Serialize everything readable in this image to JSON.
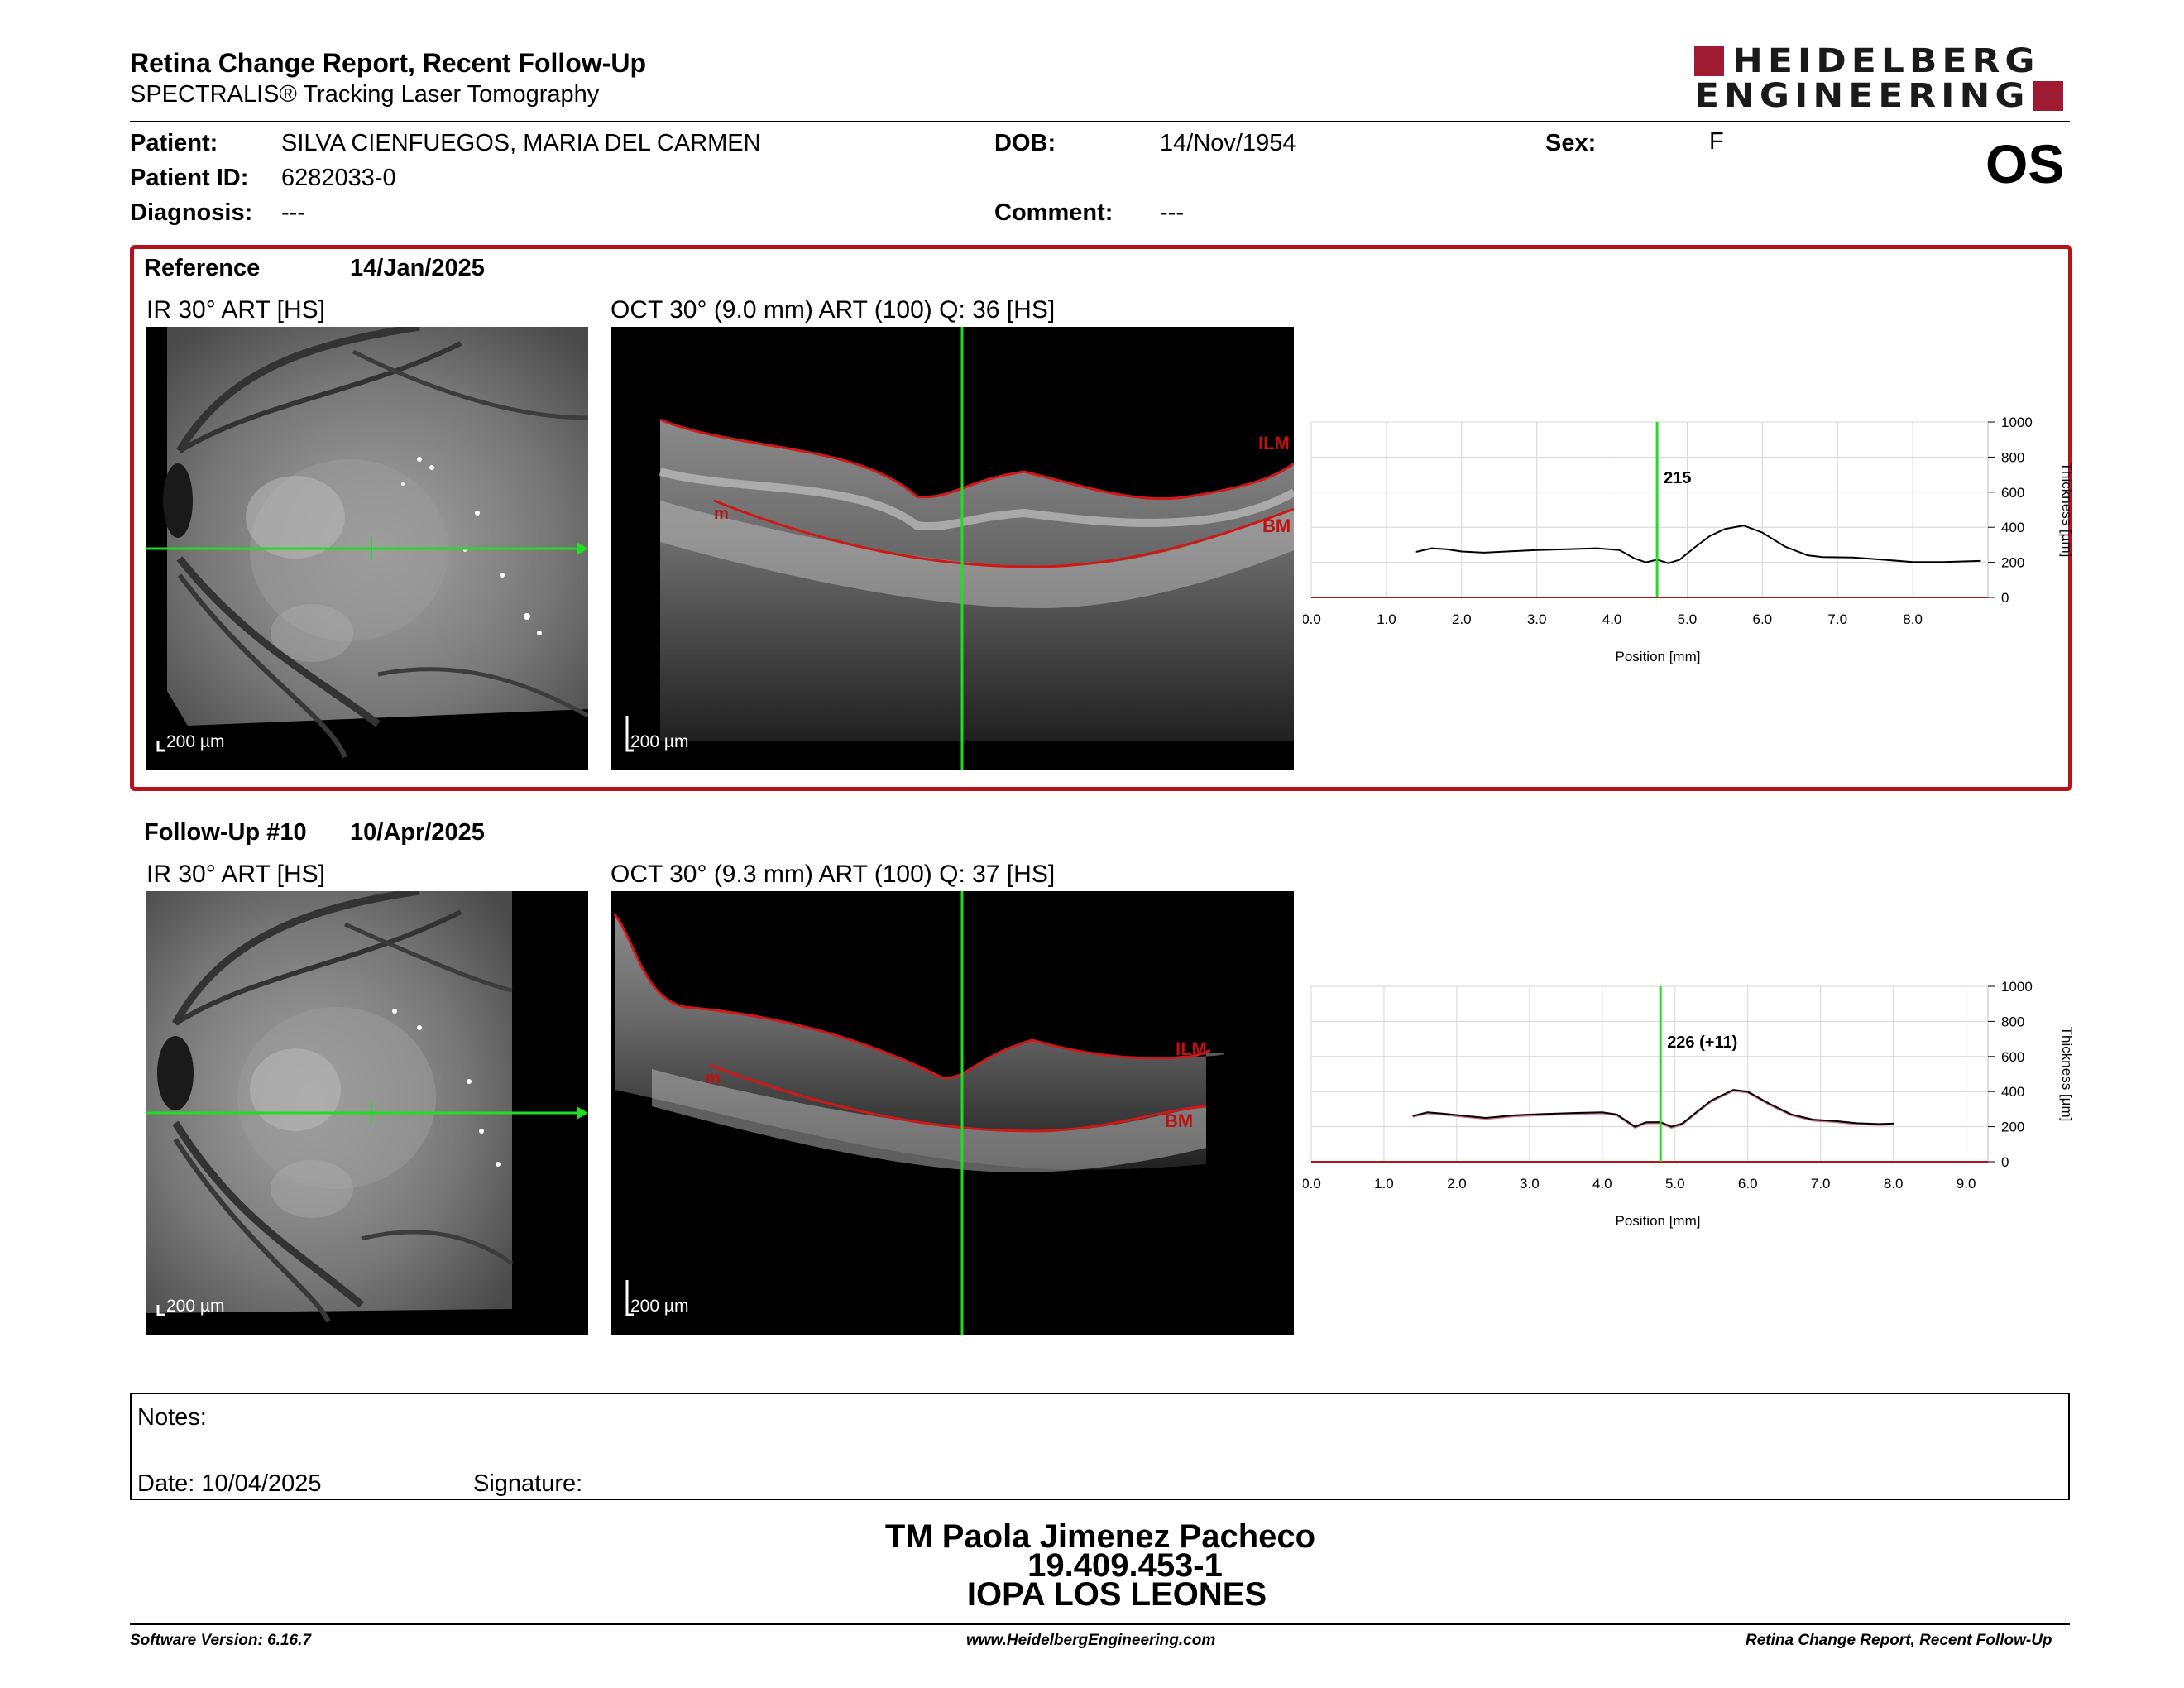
{
  "header": {
    "title": "Retina Change Report, Recent Follow-Up",
    "subtitle": "SPECTRALIS® Tracking Laser Tomography",
    "logo_line1": "HEIDELBERG",
    "logo_line2": "ENGINEERING"
  },
  "patient": {
    "patient_label": "Patient:",
    "patient_value": "SILVA CIENFUEGOS, MARIA DEL CARMEN",
    "id_label": "Patient ID:",
    "id_value": "6282033-0",
    "diagnosis_label": "Diagnosis:",
    "diagnosis_value": "---",
    "dob_label": "DOB:",
    "dob_value": "14/Nov/1954",
    "comment_label": "Comment:",
    "comment_value": "---",
    "sex_label": "Sex:",
    "sex_value": "F",
    "eye": "OS"
  },
  "reference": {
    "label": "Reference",
    "date": "14/Jan/2025",
    "ir_label": "IR 30° ART [HS]",
    "oct_label": "OCT 30° (9.0 mm) ART (100) Q: 36 [HS]",
    "ir_scale": "200 µm",
    "oct_scale": "200 µm",
    "ilm": "ILM",
    "bm": "BM",
    "m": "m",
    "cursor_value": "215"
  },
  "followup": {
    "label": "Follow-Up #10",
    "date": "10/Apr/2025",
    "ir_label": "IR 30° ART [HS]",
    "oct_label": "OCT 30° (9.3 mm) ART (100) Q: 37 [HS]",
    "ir_scale": "200 µm",
    "oct_scale": "200 µm",
    "ilm": "ILM",
    "bm": "BM",
    "m": "m",
    "cursor_value": "226 (+11)"
  },
  "chart_data": [
    {
      "type": "line",
      "xlabel": "Position [mm]",
      "ylabel": "Thickness [µm]",
      "xlim": [
        0,
        9.0
      ],
      "ylim": [
        0,
        1000
      ],
      "x_ticks": [
        "0.0",
        "1.0",
        "2.0",
        "3.0",
        "4.0",
        "5.0",
        "6.0",
        "7.0",
        "8.0"
      ],
      "y_ticks": [
        "0",
        "200",
        "400",
        "600",
        "800",
        "1000"
      ],
      "cursor_x": 4.6,
      "cursor_label": "215",
      "series": [
        {
          "x": [
            1.4,
            1.6,
            1.8,
            2.0,
            2.3,
            2.6,
            3.0,
            3.4,
            3.8,
            4.1,
            4.3,
            4.45,
            4.6,
            4.75,
            4.9,
            5.1,
            5.3,
            5.5,
            5.75,
            6.0,
            6.3,
            6.6,
            6.8,
            7.2,
            7.6,
            8.0,
            8.4,
            8.9
          ],
          "y": [
            260,
            280,
            275,
            262,
            255,
            262,
            270,
            275,
            280,
            270,
            222,
            200,
            215,
            195,
            215,
            285,
            350,
            390,
            410,
            370,
            290,
            240,
            230,
            228,
            215,
            202,
            202,
            208
          ]
        }
      ]
    },
    {
      "type": "line",
      "xlabel": "Position [mm]",
      "ylabel": "Thickness [µm]",
      "xlim": [
        0,
        9.3
      ],
      "ylim": [
        0,
        1000
      ],
      "x_ticks": [
        "0.0",
        "1.0",
        "2.0",
        "3.0",
        "4.0",
        "5.0",
        "6.0",
        "7.0",
        "8.0",
        "9.0"
      ],
      "y_ticks": [
        "0",
        "200",
        "400",
        "600",
        "800",
        "1000"
      ],
      "cursor_x": 4.8,
      "cursor_label": "226 (+11)",
      "series": [
        {
          "x": [
            1.4,
            1.6,
            1.8,
            2.1,
            2.4,
            2.8,
            3.2,
            3.6,
            4.0,
            4.2,
            4.45,
            4.6,
            4.8,
            4.95,
            5.1,
            5.3,
            5.5,
            5.8,
            6.0,
            6.3,
            6.6,
            6.9,
            7.2,
            7.5,
            7.8,
            8.0
          ],
          "y": [
            262,
            282,
            275,
            262,
            250,
            265,
            272,
            278,
            282,
            270,
            200,
            225,
            226,
            200,
            218,
            285,
            350,
            410,
            400,
            330,
            270,
            240,
            232,
            220,
            215,
            218
          ]
        }
      ]
    }
  ],
  "notes": {
    "notes_label": "Notes:",
    "date_label": "Date: 10/04/2025",
    "signature_label": "Signature:"
  },
  "signature": {
    "name": "TM Paola Jimenez Pacheco",
    "rut": "19.409.453-1",
    "org": "IOPA LOS LEONES"
  },
  "footer": {
    "software": "Software Version: 6.16.7",
    "website": "www.HeidelbergEngineering.com",
    "report": "Retina Change Report, Recent Follow-Up"
  },
  "colors": {
    "brand_red": "#9e1b32",
    "reference_border": "#b5121b",
    "cursor_green": "#22dd22",
    "segmentation_red": "#d01818"
  }
}
